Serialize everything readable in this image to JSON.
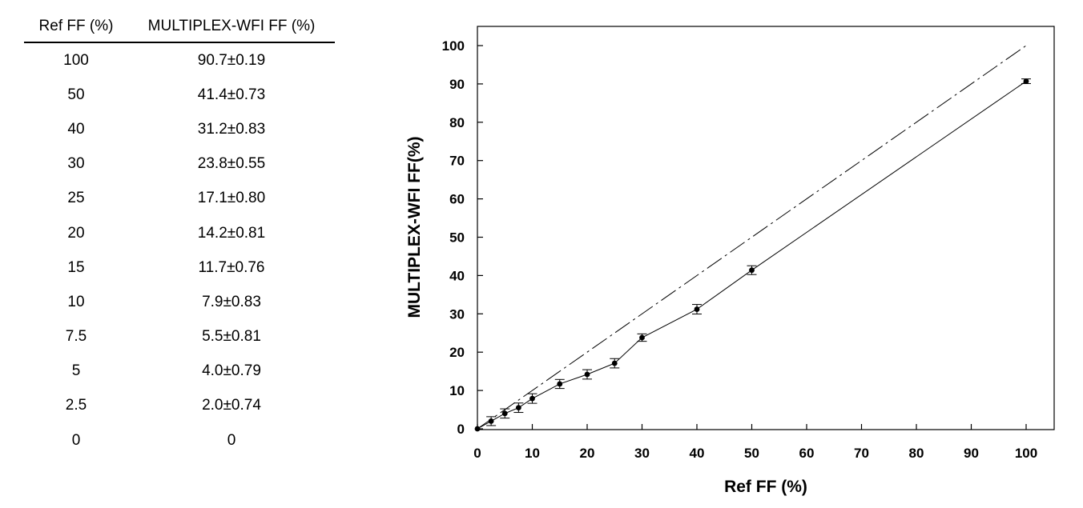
{
  "table": {
    "headers": [
      "Ref FF (%)",
      "MULTIPLEX-WFI FF (%)"
    ],
    "rows": [
      [
        "100",
        "90.7±0.19"
      ],
      [
        "50",
        "41.4±0.73"
      ],
      [
        "40",
        "31.2±0.83"
      ],
      [
        "30",
        "23.8±0.55"
      ],
      [
        "25",
        "17.1±0.80"
      ],
      [
        "20",
        "14.2±0.81"
      ],
      [
        "15",
        "11.7±0.76"
      ],
      [
        "10",
        "7.9±0.83"
      ],
      [
        "7.5",
        "5.5±0.81"
      ],
      [
        "5",
        "4.0±0.79"
      ],
      [
        "2.5",
        "2.0±0.74"
      ],
      [
        "0",
        "0"
      ]
    ]
  },
  "chart_data": {
    "type": "line",
    "xlabel": "Ref FF (%)",
    "ylabel": "MULTIPLEX-WFI FF(%)",
    "xlim": [
      0,
      105
    ],
    "ylim": [
      0,
      105
    ],
    "xticks": [
      0,
      10,
      20,
      30,
      40,
      50,
      60,
      70,
      80,
      90,
      100
    ],
    "yticks": [
      0,
      10,
      20,
      30,
      40,
      50,
      60,
      70,
      80,
      90,
      100
    ],
    "grid": false,
    "series": [
      {
        "style": "solid-with-points-and-errorbars",
        "points": [
          {
            "x": 0,
            "y": 0,
            "err": 0
          },
          {
            "x": 2.5,
            "y": 2.0,
            "err": 0.74
          },
          {
            "x": 5,
            "y": 4.0,
            "err": 0.79
          },
          {
            "x": 7.5,
            "y": 5.5,
            "err": 0.81
          },
          {
            "x": 10,
            "y": 7.9,
            "err": 0.83
          },
          {
            "x": 15,
            "y": 11.7,
            "err": 0.76
          },
          {
            "x": 20,
            "y": 14.2,
            "err": 0.81
          },
          {
            "x": 25,
            "y": 17.1,
            "err": 0.8
          },
          {
            "x": 30,
            "y": 23.8,
            "err": 0.55
          },
          {
            "x": 40,
            "y": 31.2,
            "err": 0.83
          },
          {
            "x": 50,
            "y": 41.4,
            "err": 0.73
          },
          {
            "x": 100,
            "y": 90.7,
            "err": 0.19
          }
        ]
      },
      {
        "style": "dashed-identity",
        "points": [
          {
            "x": 0,
            "y": 0
          },
          {
            "x": 100,
            "y": 100
          }
        ]
      }
    ]
  }
}
